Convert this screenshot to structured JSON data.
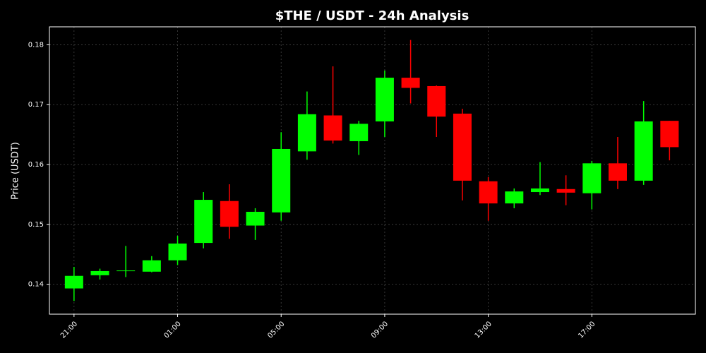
{
  "chart_data": {
    "type": "candlestick",
    "title": "$THE / USDT - 24h Analysis",
    "y_label": "Price (USDT)",
    "categories": [
      "21:00",
      null,
      null,
      null,
      "01:00",
      null,
      null,
      null,
      "05:00",
      null,
      null,
      null,
      "09:00",
      null,
      null,
      null,
      "13:00",
      null,
      null,
      null,
      "17:00",
      null,
      null,
      null
    ],
    "open": [
      0.1393,
      0.1415,
      0.1422,
      0.1421,
      0.144,
      0.1469,
      0.1539,
      0.1498,
      0.152,
      0.1622,
      0.1682,
      0.1639,
      0.1672,
      0.1745,
      0.1731,
      0.1685,
      0.1572,
      0.1535,
      0.1554,
      0.1559,
      0.1552,
      0.1602,
      0.1573,
      0.1673
    ],
    "high": [
      0.1429,
      0.1426,
      0.1464,
      0.1447,
      0.1481,
      0.1554,
      0.1567,
      0.1527,
      0.1654,
      0.1722,
      0.1764,
      0.1673,
      0.1757,
      0.1808,
      0.1732,
      0.1693,
      0.1579,
      0.156,
      0.1604,
      0.1582,
      0.1606,
      0.1646,
      0.1706,
      0.1673
    ],
    "low": [
      0.1372,
      0.1408,
      0.1412,
      0.142,
      0.1432,
      0.146,
      0.1476,
      0.1474,
      0.1506,
      0.1608,
      0.1635,
      0.1616,
      0.1646,
      0.1702,
      0.1646,
      0.154,
      0.1506,
      0.1527,
      0.1549,
      0.1532,
      0.1525,
      0.1559,
      0.1566,
      0.1607
    ],
    "close": [
      0.1414,
      0.1422,
      0.1423,
      0.144,
      0.1468,
      0.1541,
      0.1496,
      0.1521,
      0.1626,
      0.1684,
      0.164,
      0.1668,
      0.1745,
      0.1728,
      0.168,
      0.1573,
      0.1535,
      0.1555,
      0.156,
      0.1553,
      0.1602,
      0.1573,
      0.1672,
      0.1629
    ],
    "up_color": "#00ff00",
    "down_color": "#ff0000",
    "ylim": [
      0.135,
      0.183
    ],
    "yticks": [
      0.14,
      0.15,
      0.16,
      0.17,
      0.18
    ],
    "grid": true
  }
}
